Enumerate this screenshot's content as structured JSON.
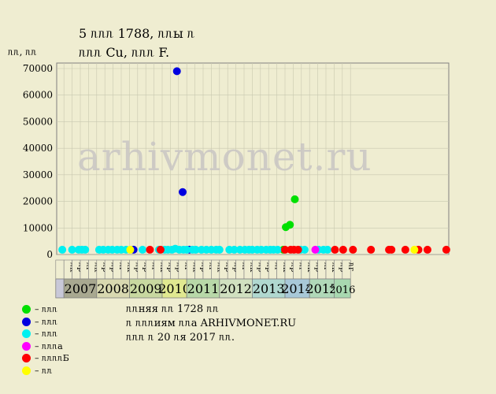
{
  "header": {
    "title_line1": "5 ᥰᥰᥰ 1788, ᥰᥰы ᥰ",
    "title_line2": "ᥰᥰᥰ Cu, ᥰᥰᥰ F.",
    "units_label": "ᥰᥰ, ᥰᥰ"
  },
  "watermark": "arhivmonet.ru",
  "chart_data": {
    "type": "scatter",
    "ylim": [
      0,
      70000
    ],
    "yticks": [
      0,
      10000,
      20000,
      30000,
      40000,
      50000,
      60000,
      70000
    ],
    "years": [
      {
        "label": "",
        "months": [],
        "color": "#c8c8d8"
      },
      {
        "label": "2007",
        "months": [
          "ᥰк",
          "ᥰр",
          "ᥰг",
          "ᥰк"
        ],
        "color": "#a8a890"
      },
      {
        "label": "2008",
        "months": [
          "ᥰр",
          "ᥰр",
          "ᥰг",
          "ᥰк"
        ],
        "color": "#d8d8b0"
      },
      {
        "label": "2009",
        "months": [
          "ᥰр",
          "ᥰр",
          "ᥰг",
          "ᥰк"
        ],
        "color": "#c8d8a0"
      },
      {
        "label": "2010",
        "months": [
          "ᥰр",
          "ᥰр",
          "ᥰг"
        ],
        "color": "#e0e890"
      },
      {
        "label": "2011",
        "months": [
          "ᥰк",
          "ᥰр",
          "ᥰг",
          "ᥰк"
        ],
        "color": "#b8d8a8"
      },
      {
        "label": "2012",
        "months": [
          "ᥰр",
          "ᥰр",
          "ᥰг",
          "ᥰк"
        ],
        "color": "#d0e0c0"
      },
      {
        "label": "2013",
        "months": [
          "ᥰр",
          "ᥰр",
          "ᥰг",
          "ᥰк"
        ],
        "color": "#b0d8d0"
      },
      {
        "label": "2014",
        "months": [
          "ᥰр",
          "ᥰг",
          "ᥰк"
        ],
        "color": "#a8c8d8"
      },
      {
        "label": "2015",
        "months": [
          "ᥰр",
          "ᥰг",
          "ᥰк"
        ],
        "color": "#b0d8b8"
      },
      {
        "label": "2016",
        "months": [
          "ᥰр",
          "ᥰг"
        ],
        "color": "#a8d8b0"
      }
    ],
    "series": [
      {
        "color": "#00e000",
        "points": [
          {
            "x": 27.3,
            "y": 1800
          },
          {
            "x": 27.6,
            "y": 10300
          },
          {
            "x": 28.1,
            "y": 11200
          },
          {
            "x": 28.7,
            "y": 20800
          }
        ]
      },
      {
        "color": "#0000e0",
        "points": [
          {
            "x": 9.0,
            "y": 1800
          },
          {
            "x": 14.3,
            "y": 69000
          },
          {
            "x": 15.0,
            "y": 23500
          },
          {
            "x": 15.8,
            "y": 1800
          }
        ]
      },
      {
        "color": "#00f0f0",
        "points": [
          {
            "x": 0.3,
            "y": 1800
          },
          {
            "x": 1.5,
            "y": 1800
          },
          {
            "x": 2.3,
            "y": 1800
          },
          {
            "x": 2.7,
            "y": 1800
          },
          {
            "x": 3.1,
            "y": 1800
          },
          {
            "x": 4.8,
            "y": 1800
          },
          {
            "x": 5.3,
            "y": 1800
          },
          {
            "x": 5.9,
            "y": 1800
          },
          {
            "x": 6.4,
            "y": 1800
          },
          {
            "x": 7.0,
            "y": 1800
          },
          {
            "x": 7.5,
            "y": 1800
          },
          {
            "x": 8.1,
            "y": 1800
          },
          {
            "x": 10.1,
            "y": 1800
          },
          {
            "x": 12.1,
            "y": 1800
          },
          {
            "x": 12.8,
            "y": 1800
          },
          {
            "x": 13.2,
            "y": 1800
          },
          {
            "x": 13.7,
            "y": 1800
          },
          {
            "x": 14.1,
            "y": 2200
          },
          {
            "x": 14.6,
            "y": 1800
          },
          {
            "x": 15.1,
            "y": 1800
          },
          {
            "x": 15.5,
            "y": 1800
          },
          {
            "x": 16.2,
            "y": 1800
          },
          {
            "x": 16.6,
            "y": 1800
          },
          {
            "x": 17.3,
            "y": 1800
          },
          {
            "x": 17.9,
            "y": 1800
          },
          {
            "x": 18.5,
            "y": 1800
          },
          {
            "x": 19.1,
            "y": 1800
          },
          {
            "x": 19.5,
            "y": 1800
          },
          {
            "x": 20.7,
            "y": 1800
          },
          {
            "x": 21.3,
            "y": 1800
          },
          {
            "x": 22.0,
            "y": 1800
          },
          {
            "x": 22.6,
            "y": 1800
          },
          {
            "x": 23.1,
            "y": 1800
          },
          {
            "x": 23.5,
            "y": 1800
          },
          {
            "x": 24.1,
            "y": 1800
          },
          {
            "x": 24.6,
            "y": 1800
          },
          {
            "x": 25.2,
            "y": 1800
          },
          {
            "x": 25.7,
            "y": 1800
          },
          {
            "x": 26.1,
            "y": 1800
          },
          {
            "x": 26.6,
            "y": 1800
          },
          {
            "x": 29.4,
            "y": 1800
          },
          {
            "x": 29.9,
            "y": 1800
          },
          {
            "x": 31.6,
            "y": 1800
          },
          {
            "x": 32.2,
            "y": 1800
          },
          {
            "x": 32.7,
            "y": 1800
          }
        ]
      },
      {
        "color": "#ff00ff",
        "points": [
          {
            "x": 31.2,
            "y": 1800
          }
        ]
      },
      {
        "color": "#ff0000",
        "points": [
          {
            "x": 11.0,
            "y": 1800
          },
          {
            "x": 12.3,
            "y": 1800
          },
          {
            "x": 27.5,
            "y": 1800
          },
          {
            "x": 28.2,
            "y": 1800
          },
          {
            "x": 28.6,
            "y": 1800
          },
          {
            "x": 29.1,
            "y": 1800
          },
          {
            "x": 33.6,
            "y": 1800
          },
          {
            "x": 34.6,
            "y": 1800
          },
          {
            "x": 35.8,
            "y": 1800
          },
          {
            "x": 38.0,
            "y": 1800
          },
          {
            "x": 40.2,
            "y": 1800
          },
          {
            "x": 40.5,
            "y": 1800
          },
          {
            "x": 42.2,
            "y": 1800
          },
          {
            "x": 43.8,
            "y": 1800
          },
          {
            "x": 44.9,
            "y": 1800
          },
          {
            "x": 47.2,
            "y": 1800
          }
        ]
      },
      {
        "color": "#ffff00",
        "points": [
          {
            "x": 8.6,
            "y": 1800
          },
          {
            "x": 43.3,
            "y": 1800
          }
        ]
      }
    ]
  },
  "legend": [
    {
      "color": "#00e000",
      "label": "– ᥰᥰᥰ"
    },
    {
      "color": "#0000e0",
      "label": "– ᥰᥰᥰ"
    },
    {
      "color": "#00f0f0",
      "label": "– ᥰᥰᥰ"
    },
    {
      "color": "#ff00ff",
      "label": "– ᥰᥰᥰа"
    },
    {
      "color": "#ff0000",
      "label": "– ᥰᥰᥰᥰБ"
    },
    {
      "color": "#ffff00",
      "label": "– ᥰᥰ"
    }
  ],
  "notes": [
    "ᥰᥰняя ᥰᥰ 1728 ᥰᥰ",
    "ᥰ ᥰᥰᥰиям ᥰᥰа ARHIVMONET.RU",
    "ᥰᥰᥰ ᥰ 20 ᥰя 2017 ᥰᥰ."
  ]
}
